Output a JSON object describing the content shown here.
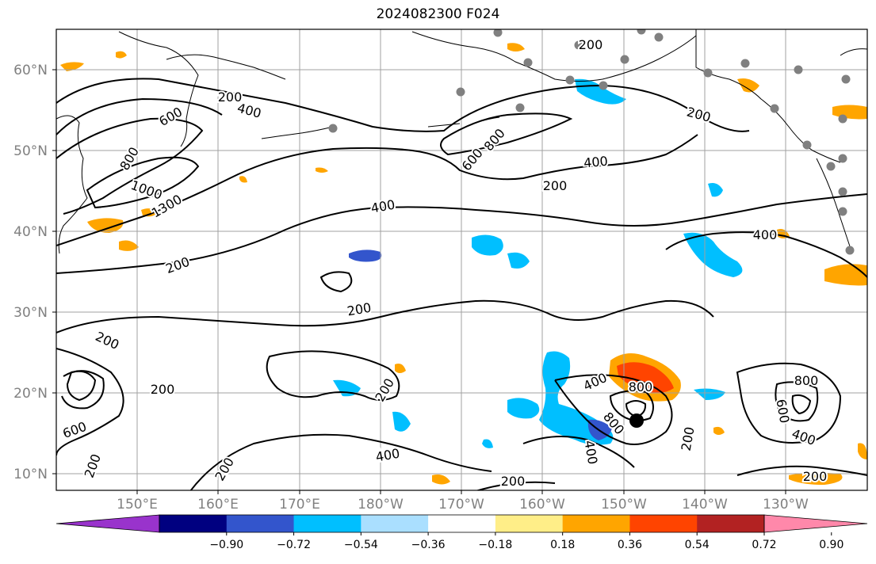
{
  "title": "2024082300 F024",
  "map": {
    "lat_labels": [
      "10°N",
      "20°N",
      "30°N",
      "40°N",
      "50°N",
      "60°N"
    ],
    "lon_labels": [
      "150°E",
      "160°E",
      "170°E",
      "180°W",
      "170°W",
      "160°W",
      "150°W",
      "140°W",
      "130°W"
    ],
    "contour_labels": [
      "200",
      "400",
      "600",
      "800",
      "1000",
      "1300",
      "200",
      "400",
      "200",
      "200",
      "200",
      "600",
      "800",
      "400",
      "200",
      "400",
      "200",
      "400",
      "200",
      "600",
      "200",
      "400",
      "200",
      "200",
      "800",
      "400",
      "600",
      "800",
      "800",
      "400",
      "200",
      "200",
      "200"
    ],
    "colors": {
      "contour": "#000000",
      "coast": "#000000",
      "grid": "#a0a0a0",
      "station_marker": "#808080",
      "storm_marker": "#000000"
    }
  },
  "colorbar": {
    "ticks": [
      "−0.90",
      "−0.72",
      "−0.54",
      "−0.36",
      "−0.18",
      "0.18",
      "0.36",
      "0.54",
      "0.72",
      "0.90"
    ],
    "colors": [
      "#9933cc",
      "#000080",
      "#3355cc",
      "#00bfff",
      "#aadfff",
      "#ffffff",
      "#ffee88",
      "#ffa500",
      "#ff4400",
      "#b22222",
      "#ff88aa"
    ]
  }
}
